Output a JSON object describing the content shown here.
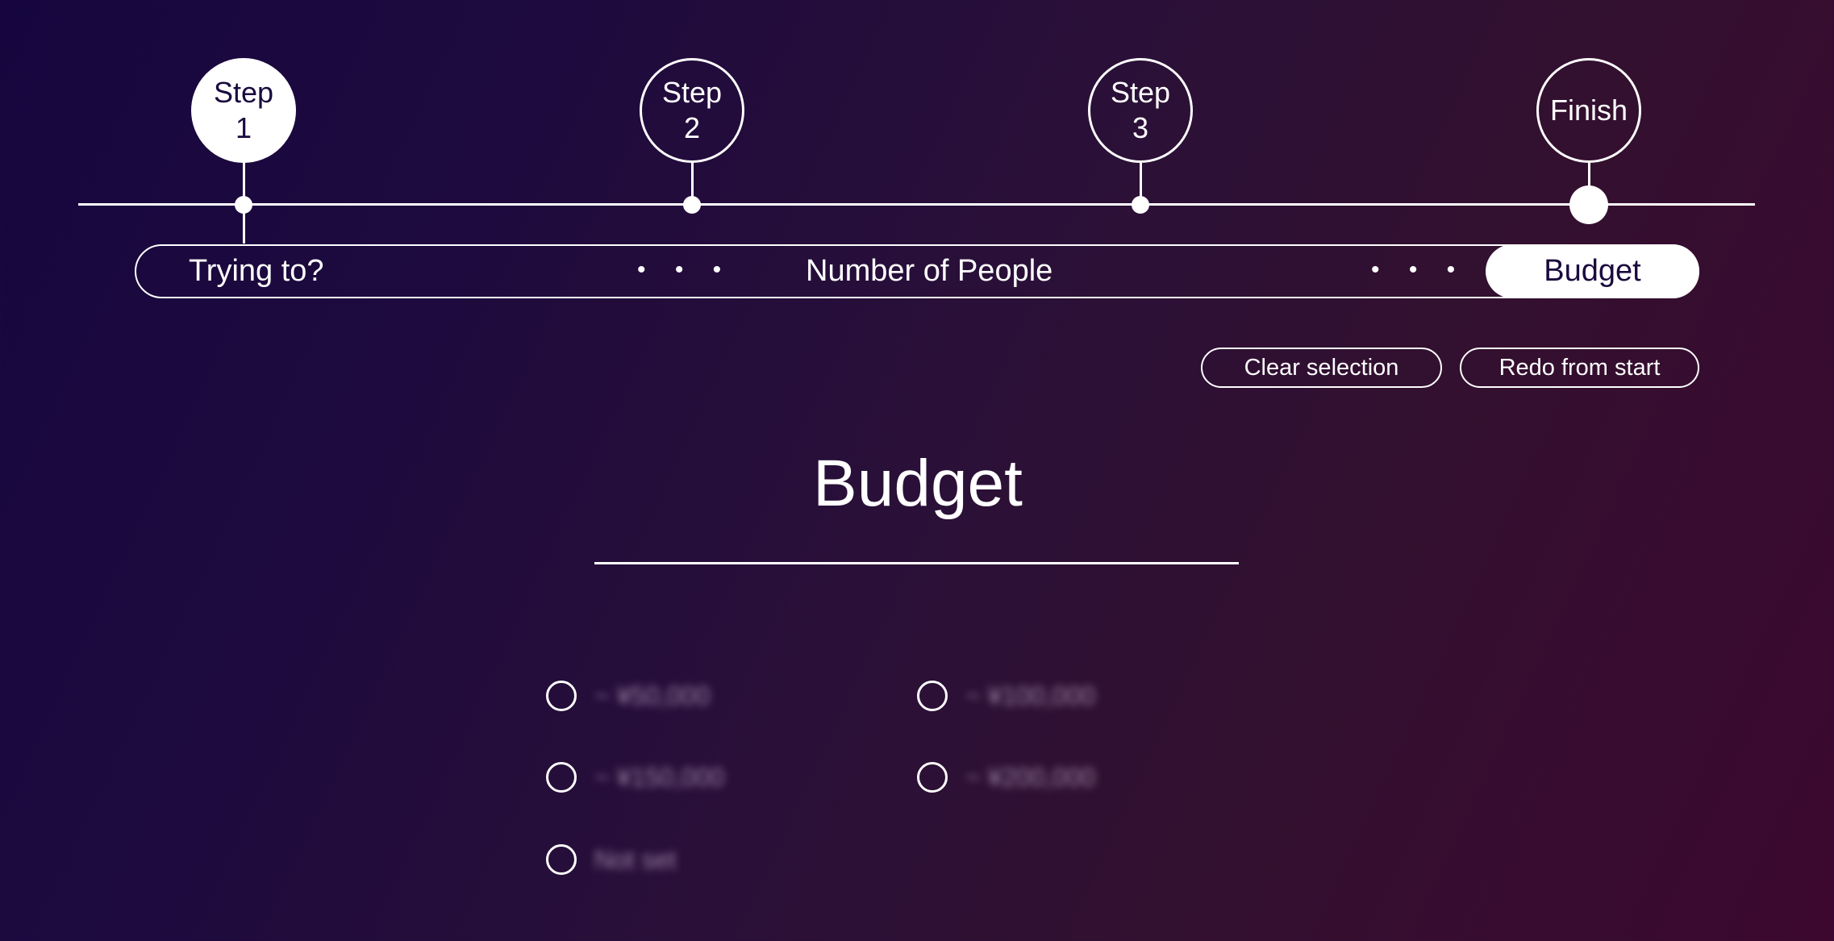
{
  "stepper": {
    "steps": [
      {
        "label_line1": "Step",
        "label_line2": "1",
        "state": "active"
      },
      {
        "label_line1": "Step",
        "label_line2": "2",
        "state": "pending"
      },
      {
        "label_line1": "Step",
        "label_line2": "3",
        "state": "pending"
      },
      {
        "label_line1": "Finish",
        "label_line2": "",
        "state": "pending"
      }
    ],
    "progress": {
      "items": [
        "Trying to?",
        "Number of People",
        "Budget"
      ],
      "separator": "• • •",
      "current": "Budget"
    }
  },
  "actions": {
    "clear_label": "Clear selection",
    "redo_label": "Redo from start"
  },
  "section": {
    "title": "Budget",
    "options": [
      "~ ¥50,000",
      "~ ¥100,000",
      "~ ¥150,000",
      "~ ¥200,000",
      "Not set"
    ]
  },
  "colors": {
    "accent": "#ffffff",
    "background_start": "#16063f",
    "background_end": "#3c0830"
  }
}
